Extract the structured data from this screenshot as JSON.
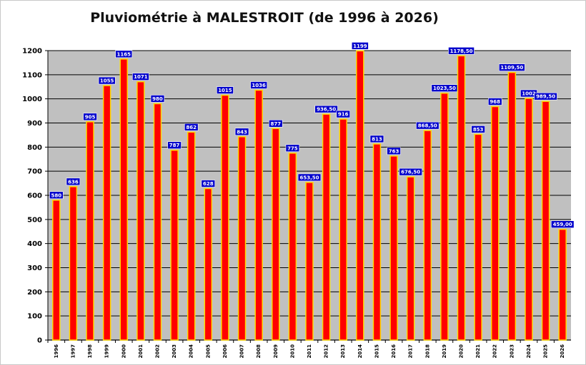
{
  "chart_data": {
    "type": "bar",
    "title": "Pluviométrie à MALESTROIT (de 1996 à 2026)",
    "xlabel": "",
    "ylabel": "",
    "ylim": [
      0,
      1200
    ],
    "yticks": [
      "0",
      "100",
      "200",
      "300",
      "400",
      "500",
      "600",
      "700",
      "800",
      "900",
      "1000",
      "1100",
      "1200"
    ],
    "grid": true,
    "categories": [
      "1996",
      "1997",
      "1998",
      "1999",
      "2000",
      "2001",
      "2002",
      "2003",
      "2004",
      "2005",
      "2006",
      "2007",
      "2008",
      "2009",
      "2010",
      "2011",
      "2012",
      "2013",
      "2014",
      "2015",
      "2016",
      "2017",
      "2018",
      "2019",
      "2020",
      "2021",
      "2022",
      "2023",
      "2024",
      "2025",
      "2026"
    ],
    "values": [
      580,
      636,
      905,
      1055,
      1165,
      1071,
      980,
      787,
      862,
      628,
      1015,
      843,
      1036,
      877,
      775,
      653.5,
      936.5,
      916,
      1199,
      813,
      763,
      676.5,
      868.5,
      1023.5,
      1178.5,
      853,
      968,
      1109.5,
      1002,
      989.5,
      459
    ],
    "data_labels": [
      "580",
      "636",
      "905",
      "1055",
      "1165",
      "1071",
      "980",
      "787",
      "862",
      "628",
      "1015",
      "843",
      "1036",
      "877",
      "775",
      "653,50",
      "936,50",
      "916",
      "1199",
      "813",
      "763",
      "676,50",
      "868,50",
      "1023,50",
      "1178,50",
      "853",
      "968",
      "1109,50",
      "1002",
      "989,50",
      "459,00"
    ],
    "colors": {
      "bar_fill": "#ff0000",
      "bar_stroke": "#ffd700",
      "plot_background": "#c0c0c0",
      "gridline": "#000000",
      "label_background": "#0000cc",
      "label_text": "#ffffff"
    }
  }
}
